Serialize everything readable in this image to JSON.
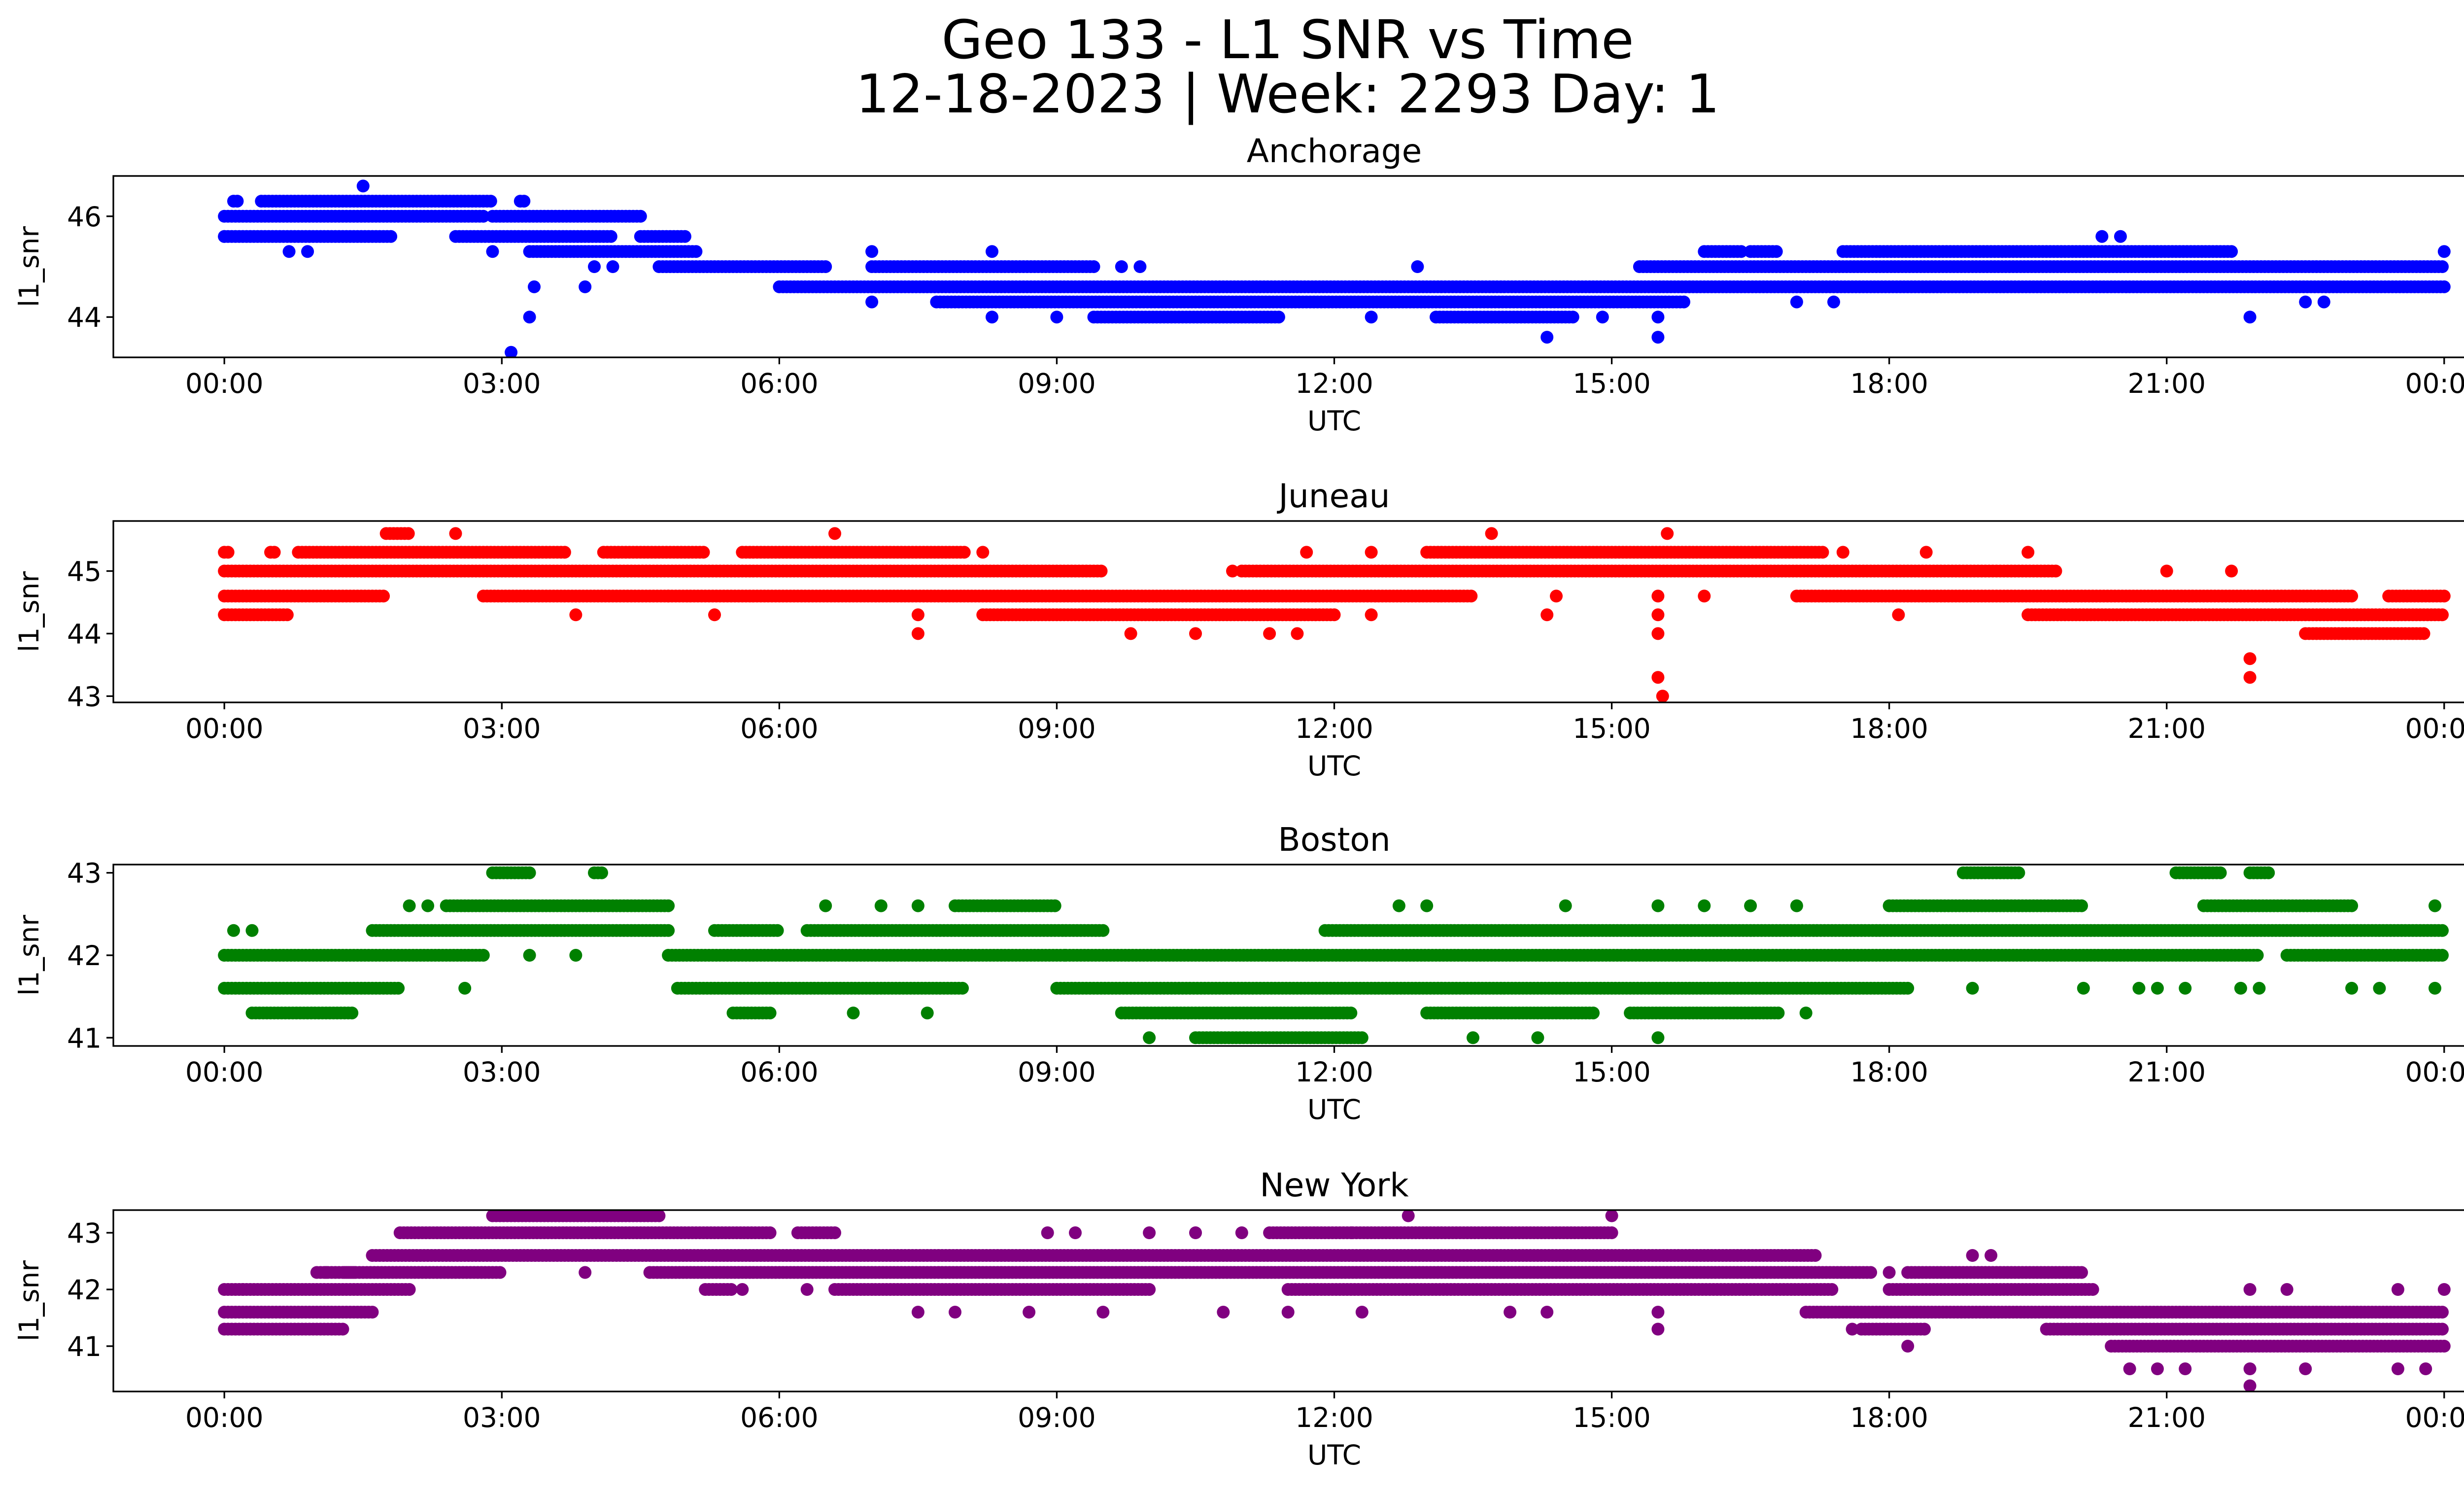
{
  "figure": {
    "title_line1": "Geo 133 - L1 SNR vs Time",
    "title_line2": "12-18-2023 | Week: 2293 Day: 1"
  },
  "chart_data": [
    {
      "type": "scatter",
      "title": "Anchorage",
      "xlabel": "UTC",
      "ylabel": "l1_snr",
      "color": "#0000ff",
      "x_unit": "hours UTC",
      "xlim": [
        -1.2,
        25.2
      ],
      "ylim": [
        43.2,
        46.8
      ],
      "yticks": [
        44,
        46
      ],
      "xticks": [
        0,
        3,
        6,
        9,
        12,
        15,
        18,
        21,
        24
      ],
      "xticklabels": [
        "00:00",
        "03:00",
        "06:00",
        "09:00",
        "12:00",
        "15:00",
        "18:00",
        "21:00",
        "00:00"
      ],
      "bands": [
        {
          "y": 46.3,
          "x_ranges": [
            [
              0.1,
              0.15
            ],
            [
              0.4,
              2.9
            ],
            [
              3.2,
              3.25
            ]
          ]
        },
        {
          "y": 46.0,
          "x_ranges": [
            [
              0.0,
              2.8
            ],
            [
              2.9,
              4.5
            ]
          ]
        },
        {
          "y": 45.6,
          "x_ranges": [
            [
              0.0,
              1.8
            ],
            [
              2.5,
              4.2
            ],
            [
              4.5,
              5.0
            ]
          ]
        },
        {
          "y": 45.3,
          "x_ranges": [
            [
              3.3,
              5.1
            ]
          ]
        },
        {
          "y": 45.0,
          "x_ranges": [
            [
              4.7,
              6.5
            ],
            [
              7.0,
              9.4
            ],
            [
              15.3,
              24.0
            ]
          ]
        },
        {
          "y": 44.6,
          "x_ranges": [
            [
              6.0,
              24.0
            ]
          ]
        },
        {
          "y": 44.3,
          "x_ranges": [
            [
              7.7,
              15.8
            ]
          ]
        },
        {
          "y": 44.0,
          "x_ranges": [
            [
              9.4,
              11.4
            ],
            [
              13.1,
              14.6
            ]
          ]
        },
        {
          "y": 45.3,
          "x_ranges": [
            [
              16.0,
              16.4
            ],
            [
              16.5,
              16.8
            ],
            [
              17.5,
              21.7
            ]
          ]
        }
      ],
      "points": [
        {
          "x": 1.5,
          "y": 46.6
        },
        {
          "x": 0.7,
          "y": 45.3
        },
        {
          "x": 0.9,
          "y": 45.3
        },
        {
          "x": 3.1,
          "y": 43.3
        },
        {
          "x": 3.3,
          "y": 44.0
        },
        {
          "x": 3.35,
          "y": 44.6
        },
        {
          "x": 3.9,
          "y": 44.6
        },
        {
          "x": 4.0,
          "y": 45.0
        },
        {
          "x": 4.2,
          "y": 45.0
        },
        {
          "x": 2.9,
          "y": 45.3
        },
        {
          "x": 0.0,
          "y": 45.6
        },
        {
          "x": 7.0,
          "y": 45.3
        },
        {
          "x": 7.0,
          "y": 44.3
        },
        {
          "x": 8.3,
          "y": 45.3
        },
        {
          "x": 8.3,
          "y": 44.0
        },
        {
          "x": 9.0,
          "y": 44.0
        },
        {
          "x": 9.7,
          "y": 45.0
        },
        {
          "x": 9.9,
          "y": 45.0
        },
        {
          "x": 12.4,
          "y": 44.0
        },
        {
          "x": 12.9,
          "y": 45.0
        },
        {
          "x": 14.3,
          "y": 43.6
        },
        {
          "x": 14.9,
          "y": 44.0
        },
        {
          "x": 15.5,
          "y": 43.6
        },
        {
          "x": 15.5,
          "y": 44.0
        },
        {
          "x": 17.0,
          "y": 44.3
        },
        {
          "x": 17.4,
          "y": 44.3
        },
        {
          "x": 20.3,
          "y": 45.6
        },
        {
          "x": 20.5,
          "y": 45.6
        },
        {
          "x": 21.9,
          "y": 44.0
        },
        {
          "x": 22.5,
          "y": 44.3
        },
        {
          "x": 22.7,
          "y": 44.3
        },
        {
          "x": 24.0,
          "y": 45.3
        }
      ]
    },
    {
      "type": "scatter",
      "title": "Juneau",
      "xlabel": "UTC",
      "ylabel": "l1_snr",
      "color": "#ff0000",
      "x_unit": "hours UTC",
      "xlim": [
        -1.2,
        25.2
      ],
      "ylim": [
        42.9,
        45.8
      ],
      "yticks": [
        43,
        44,
        45
      ],
      "xticks": [
        0,
        3,
        6,
        9,
        12,
        15,
        18,
        21,
        24
      ],
      "xticklabels": [
        "00:00",
        "03:00",
        "06:00",
        "09:00",
        "12:00",
        "15:00",
        "18:00",
        "21:00",
        "00:00"
      ],
      "bands": [
        {
          "y": 45.6,
          "x_ranges": [
            [
              1.75,
              2.0
            ]
          ]
        },
        {
          "y": 45.3,
          "x_ranges": [
            [
              0.0,
              0.05
            ],
            [
              0.5,
              0.55
            ],
            [
              0.8,
              3.7
            ],
            [
              4.1,
              5.2
            ],
            [
              5.6,
              8.0
            ],
            [
              13.0,
              17.3
            ]
          ]
        },
        {
          "y": 45.0,
          "x_ranges": [
            [
              0.0,
              9.5
            ],
            [
              11.0,
              19.8
            ]
          ]
        },
        {
          "y": 44.6,
          "x_ranges": [
            [
              0.0,
              1.75
            ],
            [
              2.8,
              4.8
            ],
            [
              4.8,
              13.5
            ],
            [
              17.0,
              23.0
            ],
            [
              23.4,
              24.0
            ]
          ]
        },
        {
          "y": 44.3,
          "x_ranges": [
            [
              0.0,
              0.7
            ],
            [
              8.2,
              12.0
            ],
            [
              19.5,
              24.0
            ]
          ]
        },
        {
          "y": 44.0,
          "x_ranges": [
            [
              22.5,
              23.8
            ]
          ]
        }
      ],
      "points": [
        {
          "x": 2.5,
          "y": 45.6
        },
        {
          "x": 6.6,
          "y": 45.6
        },
        {
          "x": 13.7,
          "y": 45.6
        },
        {
          "x": 15.6,
          "y": 45.6
        },
        {
          "x": 8.2,
          "y": 45.3
        },
        {
          "x": 11.7,
          "y": 45.3
        },
        {
          "x": 12.4,
          "y": 45.3
        },
        {
          "x": 17.5,
          "y": 45.3
        },
        {
          "x": 18.4,
          "y": 45.3
        },
        {
          "x": 19.5,
          "y": 45.3
        },
        {
          "x": 10.9,
          "y": 45.0
        },
        {
          "x": 21.0,
          "y": 45.0
        },
        {
          "x": 21.7,
          "y": 45.0
        },
        {
          "x": 3.8,
          "y": 44.3
        },
        {
          "x": 5.3,
          "y": 44.3
        },
        {
          "x": 7.5,
          "y": 44.3
        },
        {
          "x": 7.5,
          "y": 44.0
        },
        {
          "x": 9.8,
          "y": 44.0
        },
        {
          "x": 10.5,
          "y": 44.0
        },
        {
          "x": 11.3,
          "y": 44.0
        },
        {
          "x": 11.6,
          "y": 44.0
        },
        {
          "x": 12.4,
          "y": 44.3
        },
        {
          "x": 14.3,
          "y": 44.3
        },
        {
          "x": 14.4,
          "y": 44.6
        },
        {
          "x": 15.5,
          "y": 44.6
        },
        {
          "x": 15.5,
          "y": 44.3
        },
        {
          "x": 15.5,
          "y": 44.0
        },
        {
          "x": 15.5,
          "y": 43.3
        },
        {
          "x": 15.55,
          "y": 43.0
        },
        {
          "x": 16.0,
          "y": 44.6
        },
        {
          "x": 18.1,
          "y": 44.3
        },
        {
          "x": 21.9,
          "y": 43.6
        },
        {
          "x": 21.9,
          "y": 43.3
        }
      ]
    },
    {
      "type": "scatter",
      "title": "Boston",
      "xlabel": "UTC",
      "ylabel": "l1_snr",
      "color": "#008000",
      "x_unit": "hours UTC",
      "xlim": [
        -1.2,
        25.2
      ],
      "ylim": [
        40.9,
        43.1
      ],
      "yticks": [
        41,
        42,
        43
      ],
      "xticks": [
        0,
        3,
        6,
        9,
        12,
        15,
        18,
        21,
        24
      ],
      "xticklabels": [
        "00:00",
        "03:00",
        "06:00",
        "09:00",
        "12:00",
        "15:00",
        "18:00",
        "21:00",
        "00:00"
      ],
      "bands": [
        {
          "y": 43.0,
          "x_ranges": [
            [
              2.9,
              3.3
            ],
            [
              4.0,
              4.1
            ],
            [
              18.8,
              19.4
            ],
            [
              21.1,
              21.6
            ],
            [
              21.9,
              22.1
            ]
          ]
        },
        {
          "y": 42.6,
          "x_ranges": [
            [
              2.4,
              4.8
            ],
            [
              7.9,
              9.0
            ],
            [
              18.0,
              20.1
            ],
            [
              21.4,
              23.0
            ]
          ]
        },
        {
          "y": 42.3,
          "x_ranges": [
            [
              1.6,
              4.8
            ],
            [
              5.3,
              6.0
            ],
            [
              6.3,
              9.5
            ],
            [
              11.9,
              24.0
            ]
          ]
        },
        {
          "y": 42.0,
          "x_ranges": [
            [
              0.0,
              2.8
            ],
            [
              4.8,
              9.1
            ],
            [
              9.1,
              22.0
            ],
            [
              22.3,
              24.0
            ]
          ]
        },
        {
          "y": 41.6,
          "x_ranges": [
            [
              0.0,
              1.9
            ],
            [
              4.9,
              8.0
            ],
            [
              9.0,
              18.2
            ]
          ]
        },
        {
          "y": 41.3,
          "x_ranges": [
            [
              0.3,
              1.4
            ],
            [
              5.5,
              5.9
            ],
            [
              9.7,
              12.2
            ],
            [
              13.0,
              14.8
            ],
            [
              15.2,
              16.8
            ]
          ]
        },
        {
          "y": 41.0,
          "x_ranges": [
            [
              10.5,
              12.3
            ]
          ]
        }
      ],
      "points": [
        {
          "x": 0.1,
          "y": 42.3
        },
        {
          "x": 0.3,
          "y": 42.3
        },
        {
          "x": 2.0,
          "y": 42.6
        },
        {
          "x": 2.2,
          "y": 42.6
        },
        {
          "x": 2.6,
          "y": 41.6
        },
        {
          "x": 3.3,
          "y": 42.0
        },
        {
          "x": 3.8,
          "y": 42.0
        },
        {
          "x": 6.5,
          "y": 42.6
        },
        {
          "x": 7.1,
          "y": 42.6
        },
        {
          "x": 7.5,
          "y": 42.6
        },
        {
          "x": 10.0,
          "y": 41.0
        },
        {
          "x": 12.7,
          "y": 42.6
        },
        {
          "x": 13.0,
          "y": 42.6
        },
        {
          "x": 14.5,
          "y": 42.6
        },
        {
          "x": 15.5,
          "y": 42.6
        },
        {
          "x": 16.0,
          "y": 42.6
        },
        {
          "x": 16.5,
          "y": 42.6
        },
        {
          "x": 17.0,
          "y": 42.6
        },
        {
          "x": 7.6,
          "y": 41.3
        },
        {
          "x": 6.8,
          "y": 41.3
        },
        {
          "x": 13.5,
          "y": 41.0
        },
        {
          "x": 14.2,
          "y": 41.0
        },
        {
          "x": 15.5,
          "y": 41.0
        },
        {
          "x": 17.1,
          "y": 41.3
        },
        {
          "x": 18.9,
          "y": 41.6
        },
        {
          "x": 20.1,
          "y": 41.6
        },
        {
          "x": 20.7,
          "y": 41.6
        },
        {
          "x": 20.9,
          "y": 41.6
        },
        {
          "x": 21.2,
          "y": 41.6
        },
        {
          "x": 21.8,
          "y": 41.6
        },
        {
          "x": 22.0,
          "y": 41.6
        },
        {
          "x": 23.0,
          "y": 41.6
        },
        {
          "x": 23.3,
          "y": 41.6
        },
        {
          "x": 23.9,
          "y": 41.6
        },
        {
          "x": 23.9,
          "y": 42.6
        }
      ]
    },
    {
      "type": "scatter",
      "title": "New York",
      "xlabel": "UTC",
      "ylabel": "l1_snr",
      "color": "#800080",
      "x_unit": "hours UTC",
      "xlim": [
        -1.2,
        25.2
      ],
      "ylim": [
        40.2,
        43.4
      ],
      "yticks": [
        41,
        42,
        43
      ],
      "xticks": [
        0,
        3,
        6,
        9,
        12,
        15,
        18,
        21,
        24
      ],
      "xticklabels": [
        "00:00",
        "03:00",
        "06:00",
        "09:00",
        "12:00",
        "15:00",
        "18:00",
        "21:00",
        "00:00"
      ],
      "bands": [
        {
          "y": 43.3,
          "x_ranges": [
            [
              2.9,
              4.7
            ]
          ]
        },
        {
          "y": 43.0,
          "x_ranges": [
            [
              1.9,
              5.9
            ],
            [
              6.2,
              6.6
            ],
            [
              11.3,
              12.2
            ],
            [
              12.2,
              15.0
            ]
          ]
        },
        {
          "y": 42.6,
          "x_ranges": [
            [
              1.6,
              17.2
            ]
          ]
        },
        {
          "y": 42.3,
          "x_ranges": [
            [
              1.0,
              1.4
            ],
            [
              1.3,
              3.0
            ],
            [
              4.6,
              17.8
            ],
            [
              18.2,
              20.1
            ]
          ]
        },
        {
          "y": 42.0,
          "x_ranges": [
            [
              0.0,
              2.0
            ],
            [
              5.2,
              5.5
            ],
            [
              6.6,
              10.0
            ],
            [
              11.5,
              17.4
            ],
            [
              18.0,
              20.2
            ]
          ]
        },
        {
          "y": 41.6,
          "x_ranges": [
            [
              0.0,
              1.6
            ],
            [
              17.1,
              24.0
            ]
          ]
        },
        {
          "y": 41.3,
          "x_ranges": [
            [
              0.0,
              1.3
            ],
            [
              17.7,
              18.4
            ],
            [
              19.7,
              24.0
            ]
          ]
        },
        {
          "y": 41.0,
          "x_ranges": [
            [
              20.4,
              24.0
            ]
          ]
        }
      ],
      "points": [
        {
          "x": 0.2,
          "y": 42.0
        },
        {
          "x": 1.1,
          "y": 42.3
        },
        {
          "x": 3.9,
          "y": 42.3
        },
        {
          "x": 5.6,
          "y": 42.0
        },
        {
          "x": 6.3,
          "y": 42.0
        },
        {
          "x": 8.9,
          "y": 43.0
        },
        {
          "x": 9.2,
          "y": 43.0
        },
        {
          "x": 10.0,
          "y": 43.0
        },
        {
          "x": 10.5,
          "y": 43.0
        },
        {
          "x": 11.0,
          "y": 43.0
        },
        {
          "x": 7.5,
          "y": 41.6
        },
        {
          "x": 7.9,
          "y": 41.6
        },
        {
          "x": 8.7,
          "y": 41.6
        },
        {
          "x": 9.5,
          "y": 41.6
        },
        {
          "x": 10.8,
          "y": 41.6
        },
        {
          "x": 11.5,
          "y": 41.6
        },
        {
          "x": 12.3,
          "y": 41.6
        },
        {
          "x": 12.8,
          "y": 43.3
        },
        {
          "x": 15.0,
          "y": 43.3
        },
        {
          "x": 13.9,
          "y": 41.6
        },
        {
          "x": 14.3,
          "y": 41.6
        },
        {
          "x": 15.5,
          "y": 41.6
        },
        {
          "x": 15.5,
          "y": 41.3
        },
        {
          "x": 17.6,
          "y": 41.3
        },
        {
          "x": 18.2,
          "y": 41.0
        },
        {
          "x": 18.0,
          "y": 42.3
        },
        {
          "x": 18.9,
          "y": 42.6
        },
        {
          "x": 19.1,
          "y": 42.6
        },
        {
          "x": 20.6,
          "y": 40.6
        },
        {
          "x": 20.9,
          "y": 40.6
        },
        {
          "x": 21.2,
          "y": 40.6
        },
        {
          "x": 21.9,
          "y": 40.6
        },
        {
          "x": 21.9,
          "y": 40.3
        },
        {
          "x": 22.5,
          "y": 40.6
        },
        {
          "x": 23.5,
          "y": 40.6
        },
        {
          "x": 23.8,
          "y": 40.6
        },
        {
          "x": 21.9,
          "y": 42.0
        },
        {
          "x": 22.3,
          "y": 42.0
        },
        {
          "x": 23.5,
          "y": 42.0
        },
        {
          "x": 24.0,
          "y": 42.0
        }
      ]
    }
  ]
}
